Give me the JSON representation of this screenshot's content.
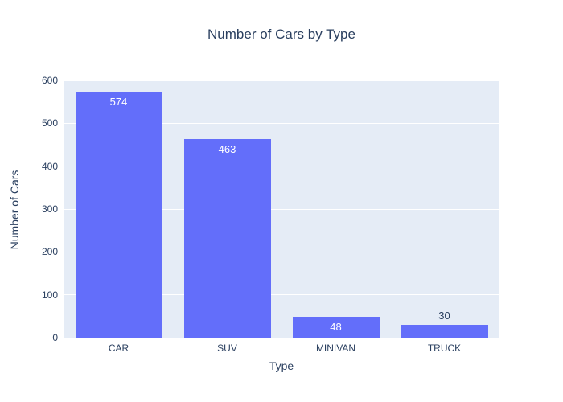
{
  "chart_data": {
    "type": "bar",
    "title": "Number of Cars by Type",
    "xlabel": "Type",
    "ylabel": "Number of Cars",
    "categories": [
      "CAR",
      "SUV",
      "MINIVAN",
      "TRUCK"
    ],
    "values": [
      574,
      463,
      48,
      30
    ],
    "data_labels": [
      "574",
      "463",
      "48",
      "30"
    ],
    "ylim": [
      0,
      600
    ],
    "yticks": [
      0,
      100,
      200,
      300,
      400,
      500,
      600
    ],
    "grid": "horizontal-white",
    "legend_position": "none",
    "colors": {
      "bar": "#636efa",
      "plot_background": "#e5ecf6",
      "gridline": "#ffffff",
      "text": "#2a3f5f",
      "label_inside": "#ffffff",
      "label_outside": "#2a3f5f"
    }
  }
}
